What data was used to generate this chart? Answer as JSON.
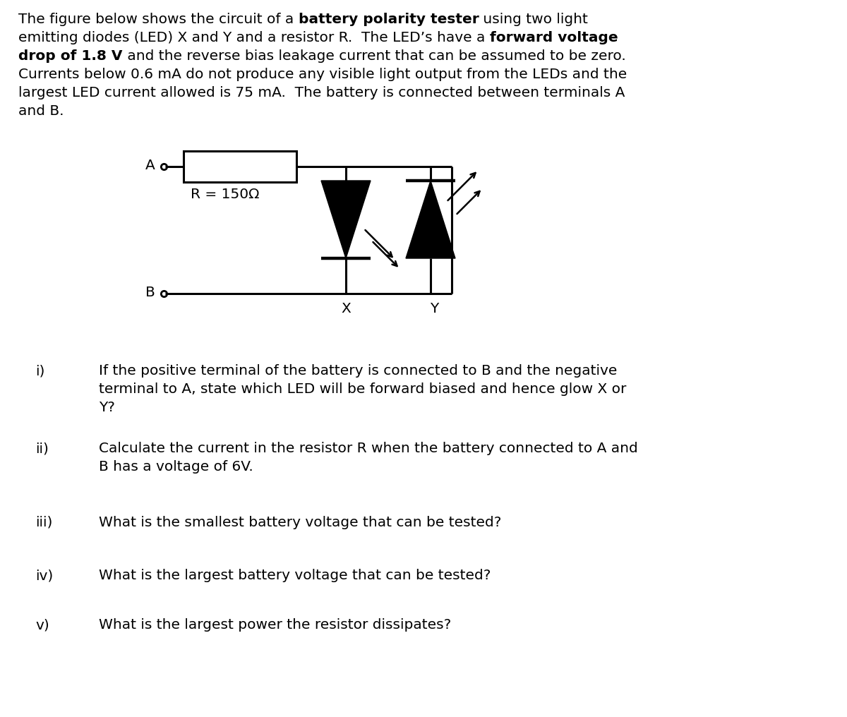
{
  "bg_color": "#ffffff",
  "text_color": "#000000",
  "para_lines": [
    [
      [
        "The figure below shows the circuit of a ",
        false
      ],
      [
        "battery polarity tester",
        true
      ],
      [
        " using two light",
        false
      ]
    ],
    [
      [
        "emitting diodes (LED) X and Y and a resistor R.  The LED’s have a ",
        false
      ],
      [
        "forward voltage",
        true
      ]
    ],
    [
      [
        "drop of 1.8 V",
        true
      ],
      [
        " and the reverse bias leakage current that can be assumed to be zero.",
        false
      ]
    ],
    [
      [
        "Currents below 0.6 mA do not produce any visible light output from the LEDs and the",
        false
      ]
    ],
    [
      [
        "largest LED current allowed is 75 mA.  The battery is connected between terminals A",
        false
      ]
    ],
    [
      [
        "and B.",
        false
      ]
    ]
  ],
  "questions": [
    {
      "label": "i)",
      "text": "If the positive terminal of the battery is connected to B and the negative\nterminal to A, state which LED will be forward biased and hence glow X or\nY?"
    },
    {
      "label": "ii)",
      "text": "Calculate the current in the resistor R when the battery connected to A and\nB has a voltage of 6V."
    },
    {
      "label": "iii)",
      "text": "What is the smallest battery voltage that can be tested?"
    },
    {
      "label": "iv)",
      "text": "What is the largest battery voltage that can be tested?"
    },
    {
      "label": "v)",
      "text": "What is the largest power the resistor dissipates?"
    }
  ],
  "resistor_label": "R = 150Ω",
  "font_size": 14.5,
  "circuit_font_size": 14.5,
  "lw": 2.2
}
